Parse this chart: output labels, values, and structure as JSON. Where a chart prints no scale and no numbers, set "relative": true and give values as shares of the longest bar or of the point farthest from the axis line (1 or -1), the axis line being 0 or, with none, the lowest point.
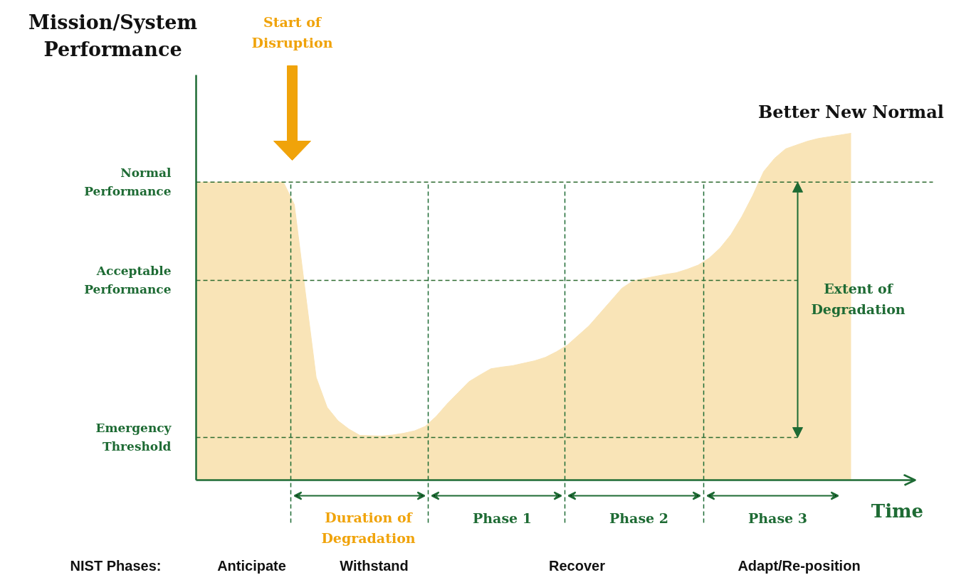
{
  "chart_data": {
    "type": "area",
    "relative": true,
    "ylabel": "Mission/System Performance",
    "xlabel": "Time",
    "color": "#f9e4b7",
    "categories": [
      null,
      null,
      null,
      null,
      null,
      null,
      null,
      null,
      null,
      null,
      null,
      null,
      null,
      null,
      null,
      null,
      null,
      null,
      null,
      null,
      null,
      null,
      null,
      null,
      null,
      null,
      null,
      null,
      null,
      null,
      null,
      null,
      null,
      null,
      null,
      null,
      null,
      null,
      null,
      null,
      null,
      null,
      null,
      null,
      null,
      null,
      null,
      null,
      null,
      null,
      null,
      null,
      null,
      null,
      null,
      null,
      null,
      null,
      null,
      null,
      null
    ],
    "values": [
      0.859,
      0.859,
      0.859,
      0.859,
      0.859,
      0.859,
      0.859,
      0.859,
      0.859,
      0.794,
      0.543,
      0.296,
      0.21,
      0.171,
      0.147,
      0.129,
      0.128,
      0.127,
      0.13,
      0.135,
      0.142,
      0.155,
      0.184,
      0.22,
      0.252,
      0.284,
      0.303,
      0.321,
      0.326,
      0.33,
      0.337,
      0.344,
      0.354,
      0.37,
      0.389,
      0.417,
      0.445,
      0.481,
      0.517,
      0.553,
      0.574,
      0.581,
      0.587,
      0.593,
      0.598,
      0.608,
      0.62,
      0.64,
      0.669,
      0.708,
      0.76,
      0.821,
      0.89,
      0.928,
      0.955,
      0.966,
      0.977,
      0.985,
      0.99,
      0.995,
      1.0
    ],
    "ref_lines": [
      {
        "axis": "y",
        "value": 0.859,
        "label": "Normal\nPerformance",
        "color": "#2e6b30",
        "line_style": "dashed"
      },
      {
        "axis": "y",
        "value": 0.576,
        "label": "Acceptable\nPerformance",
        "color": "#2e6b30",
        "line_style": "dashed"
      },
      {
        "axis": "y",
        "value": 0.123,
        "label": "Emergency\nThreshold",
        "color": "#2e6b30",
        "line_style": "dashed"
      }
    ],
    "annotations": [
      "Start of\nDisruption",
      "Better New Normal",
      "Extent of\nDegradation",
      "Duration of\nDegradation",
      "Phase 1",
      "Phase 2",
      "Phase 3",
      "NIST Phases:",
      "Anticipate",
      "Withstand",
      "Recover",
      "Adapt/Re-position"
    ],
    "grid": false
  }
}
